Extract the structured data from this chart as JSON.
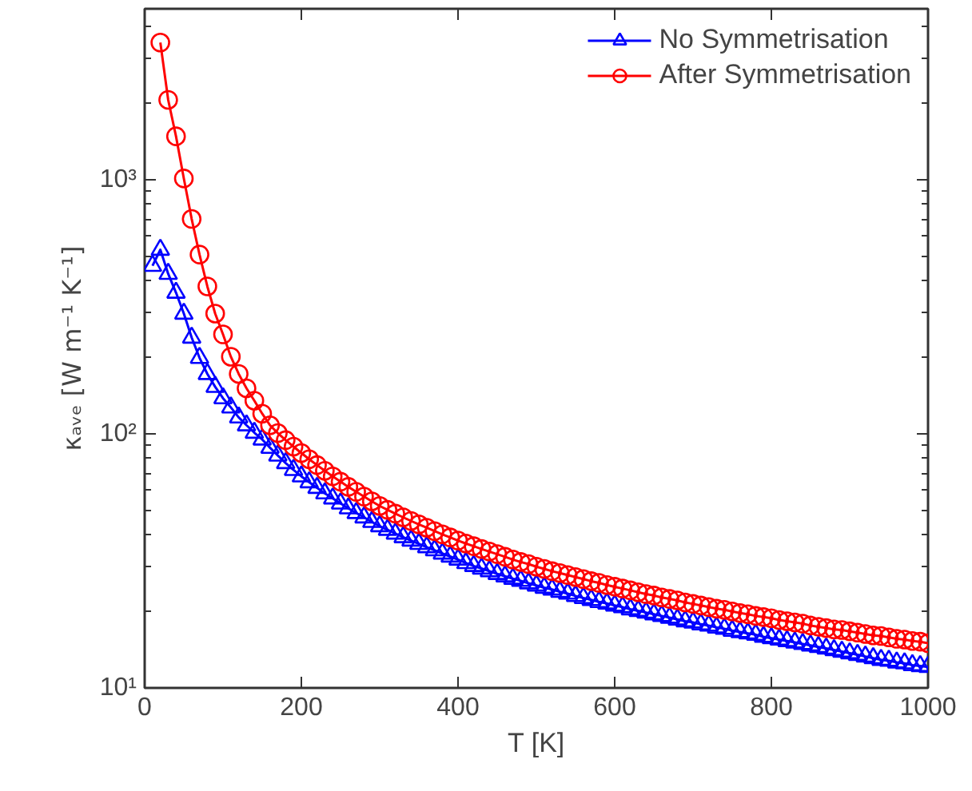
{
  "chart_data": {
    "type": "line",
    "xlabel": "T [K]",
    "ylabel": "κₐᵥₑ [W m⁻¹ K⁻¹]",
    "x": [
      10,
      20,
      30,
      40,
      50,
      60,
      70,
      80,
      90,
      100,
      110,
      120,
      130,
      140,
      150,
      160,
      170,
      180,
      190,
      200,
      210,
      220,
      230,
      240,
      250,
      260,
      270,
      280,
      290,
      300,
      310,
      320,
      330,
      340,
      350,
      360,
      370,
      380,
      390,
      400,
      410,
      420,
      430,
      440,
      450,
      460,
      470,
      480,
      490,
      500,
      510,
      520,
      530,
      540,
      550,
      560,
      570,
      580,
      590,
      600,
      610,
      620,
      630,
      640,
      650,
      660,
      670,
      680,
      690,
      700,
      710,
      720,
      730,
      740,
      750,
      760,
      770,
      780,
      790,
      800,
      810,
      820,
      830,
      840,
      850,
      860,
      870,
      880,
      890,
      900,
      910,
      920,
      930,
      940,
      950,
      960,
      970,
      980,
      990,
      1000
    ],
    "series": [
      {
        "name": "No Symmetrisation",
        "color": "#0000ff",
        "marker": "triangle",
        "values": [
          458,
          530,
          426,
          359,
          297,
          239,
          199,
          172,
          153,
          138,
          127,
          116,
          108,
          101,
          95,
          88.1,
          82.1,
          76.7,
          72.1,
          68,
          64.5,
          61.3,
          58.3,
          55.7,
          53.2,
          50.9,
          48.8,
          46.9,
          45.0,
          43.3,
          41.9,
          40.5,
          39.2,
          38.0,
          36.9,
          35.8,
          34.8,
          33.8,
          32.9,
          32.0,
          31.0,
          30.2,
          29.5,
          28.8,
          28.1,
          27.5,
          26.9,
          26.4,
          25.8,
          25.3,
          24.8,
          24.4,
          23.9,
          23.5,
          23.0,
          22.6,
          22.2,
          21.8,
          21.5,
          21.1,
          20.8,
          20.4,
          20.1,
          19.8,
          19.5,
          19.2,
          18.9,
          18.6,
          18.3,
          18.1,
          17.8,
          17.6,
          17.3,
          17.1,
          16.8,
          16.6,
          16.4,
          16.2,
          15.9,
          15.7,
          15.5,
          15.3,
          15.1,
          14.9,
          14.7,
          14.5,
          14.3,
          14.1,
          13.9,
          13.7,
          13.5,
          13.3,
          13.1,
          12.9,
          12.8,
          12.6,
          12.5,
          12.3,
          12.2,
          12.1
        ]
      },
      {
        "name": "After Symmetrisation",
        "color": "#ff0000",
        "marker": "circle",
        "values": [
          null,
          3460,
          2060,
          1480,
          1010,
          700,
          507,
          380,
          297,
          246,
          201,
          172,
          151,
          135,
          120,
          108,
          100.6,
          94.4,
          89,
          84,
          79.4,
          75.3,
          71.5,
          68,
          64.8,
          61.8,
          59.1,
          56.6,
          54.2,
          52,
          50.2,
          48.5,
          46.9,
          45.4,
          44,
          42.7,
          41.4,
          40.2,
          39.1,
          38,
          37.0,
          36.1,
          35.2,
          34.4,
          33.6,
          32.8,
          32.0,
          31.3,
          30.7,
          30.0,
          29.4,
          28.8,
          28.3,
          27.8,
          27.3,
          26.8,
          26.3,
          25.9,
          25.4,
          25.0,
          24.6,
          24.2,
          23.8,
          23.4,
          23.1,
          22.7,
          22.4,
          22.1,
          21.7,
          21.4,
          21.1,
          20.8,
          20.5,
          20.3,
          20.0,
          19.7,
          19.5,
          19.2,
          19.0,
          18.8,
          18.5,
          18.3,
          18.1,
          17.9,
          17.6,
          17.4,
          17.2,
          17.0,
          16.9,
          16.7,
          16.5,
          16.3,
          16.1,
          16.0,
          15.8,
          15.6,
          15.5,
          15.3,
          15.2,
          15.0
        ]
      }
    ],
    "xlim": [
      0,
      1000
    ],
    "ylim": [
      10,
      4700
    ],
    "xticks": [
      0,
      200,
      400,
      600,
      800,
      1000
    ],
    "yticks": [
      {
        "value": 10,
        "label": "10¹"
      },
      {
        "value": 100,
        "label": "10²"
      },
      {
        "value": 1000,
        "label": "10³"
      }
    ],
    "log": "y",
    "grid": false,
    "legend": "top right",
    "line_style": "solid"
  }
}
